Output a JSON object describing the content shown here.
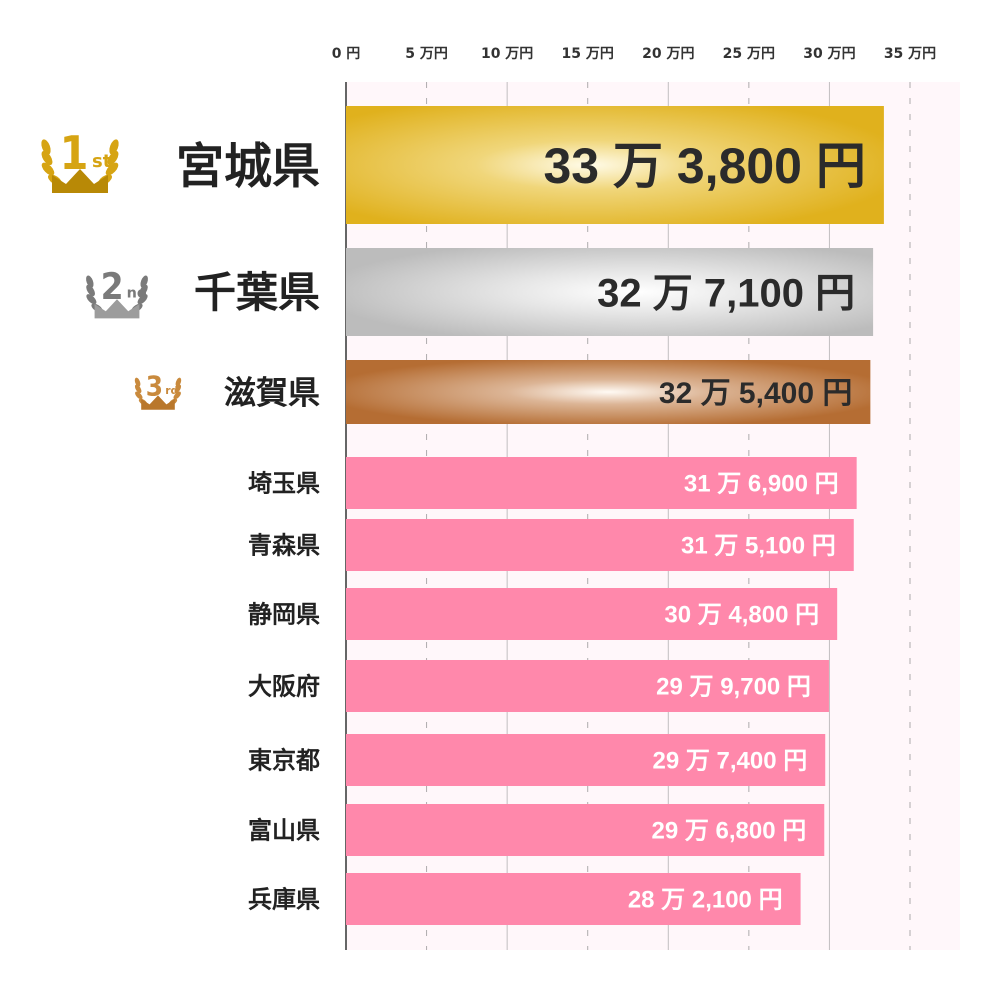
{
  "chart_data": {
    "type": "bar",
    "orientation": "horizontal",
    "categories": [
      "宮城県",
      "千葉県",
      "滋賀県",
      "埼玉県",
      "青森県",
      "静岡県",
      "大阪府",
      "東京都",
      "富山県",
      "兵庫県"
    ],
    "values": [
      333800,
      327100,
      325400,
      316900,
      315100,
      304800,
      299700,
      297400,
      296800,
      282100
    ],
    "value_labels": [
      "33 万 3,800 円",
      "32 万 7,100 円",
      "32 万 5,400 円",
      "31 万 6,900 円",
      "31 万 5,100 円",
      "30 万 4,800 円",
      "29 万 9,700 円",
      "29 万 7,400 円",
      "29 万 6,800 円",
      "28 万 2,100 円"
    ],
    "tick_values": [
      0,
      50000,
      100000,
      150000,
      200000,
      250000,
      300000,
      350000
    ],
    "tick_labels": [
      "0 円",
      "5 万円",
      "10 万円",
      "15 万円",
      "20 万円",
      "25 万円",
      "30 万円",
      "35 万円"
    ],
    "xlim": [
      0,
      350000
    ],
    "rank_badges": [
      {
        "num": "1",
        "suffix": "st"
      },
      {
        "num": "2",
        "suffix": "nd"
      },
      {
        "num": "3",
        "suffix": "rd"
      }
    ],
    "colors": {
      "gold": "#e0b11d",
      "silver": "#c2c2c2",
      "bronze": "#b56d33",
      "pink": "#ff88ab",
      "background": "#fff7fa",
      "axis": "#666666"
    },
    "grid": true
  }
}
